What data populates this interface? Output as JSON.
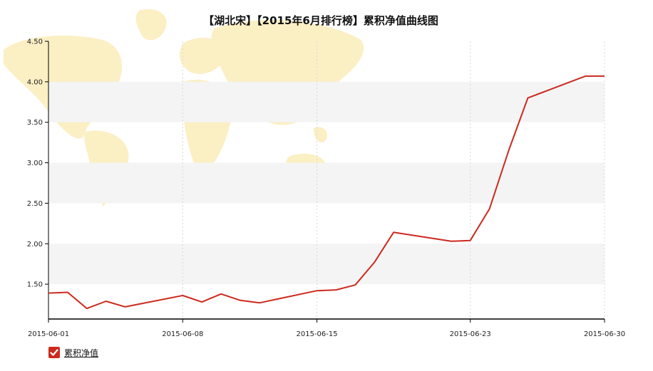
{
  "colors": {
    "line": "#cc2a1e",
    "band": "#f4f4f4",
    "grid": "#d8d8d8",
    "axis": "#000000",
    "map": "#fbefc4"
  },
  "legend": {
    "label": "累积净值",
    "icon": "checkmark-icon"
  },
  "chart_data": {
    "type": "line",
    "title": "【湖北宋】【2015年6月排行榜】累积净值曲线图",
    "xlabel": "",
    "ylabel": "",
    "x_tick_labels": [
      "2015-06-01",
      "2015-06-08",
      "2015-06-15",
      "2015-06-23",
      "2015-06-30"
    ],
    "y_tick_labels": [
      "1.50",
      "2.00",
      "2.50",
      "3.00",
      "3.50",
      "4.00",
      "4.50"
    ],
    "ylim": [
      1.07,
      4.5
    ],
    "grid": "vertical dashed at labeled dates; alternating horizontal bands",
    "legend_position": "bottom-left",
    "x": [
      "2015-06-01",
      "2015-06-02",
      "2015-06-03",
      "2015-06-04",
      "2015-06-05",
      "2015-06-08",
      "2015-06-09",
      "2015-06-10",
      "2015-06-11",
      "2015-06-12",
      "2015-06-15",
      "2015-06-16",
      "2015-06-17",
      "2015-06-18",
      "2015-06-19",
      "2015-06-22",
      "2015-06-23",
      "2015-06-24",
      "2015-06-25",
      "2015-06-26",
      "2015-06-29",
      "2015-06-30"
    ],
    "series": [
      {
        "name": "累积净值",
        "values": [
          1.39,
          1.4,
          1.2,
          1.29,
          1.22,
          1.36,
          1.28,
          1.38,
          1.3,
          1.27,
          1.42,
          1.43,
          1.49,
          1.77,
          2.14,
          2.03,
          2.04,
          2.43,
          3.15,
          3.8,
          4.07,
          4.07
        ]
      }
    ]
  }
}
